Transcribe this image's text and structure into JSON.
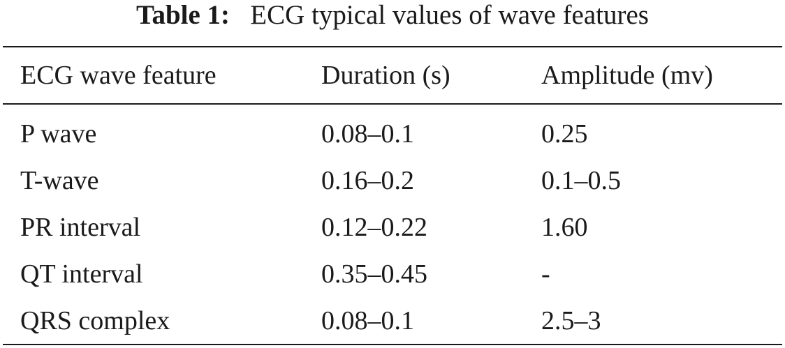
{
  "caption": {
    "label": "Table 1:",
    "text": "ECG typical values of wave features"
  },
  "table": {
    "headers": [
      "ECG wave feature",
      "Duration (s)",
      "Amplitude (mv)"
    ],
    "rows": [
      [
        "P wave",
        "0.08–0.1",
        "0.25"
      ],
      [
        "T-wave",
        "0.16–0.2",
        "0.1–0.5"
      ],
      [
        "PR interval",
        "0.12–0.22",
        "1.60"
      ],
      [
        "QT interval",
        "0.35–0.45",
        "-"
      ],
      [
        "QRS complex",
        "0.08–0.1",
        "2.5–3"
      ]
    ]
  }
}
